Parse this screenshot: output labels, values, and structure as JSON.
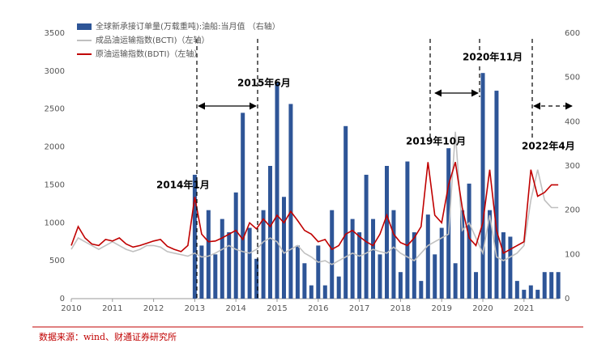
{
  "chart_data": {
    "type": "bar-line",
    "x": [
      2010,
      2010.167,
      2010.333,
      2010.5,
      2010.667,
      2010.833,
      2011,
      2011.167,
      2011.333,
      2011.5,
      2011.667,
      2011.833,
      2012,
      2012.167,
      2012.333,
      2012.5,
      2012.667,
      2012.833,
      2013,
      2013.167,
      2013.333,
      2013.5,
      2013.667,
      2013.833,
      2014,
      2014.167,
      2014.333,
      2014.5,
      2014.667,
      2014.833,
      2015,
      2015.167,
      2015.333,
      2015.5,
      2015.667,
      2015.833,
      2016,
      2016.167,
      2016.333,
      2016.5,
      2016.667,
      2016.833,
      2017,
      2017.167,
      2017.333,
      2017.5,
      2017.667,
      2017.833,
      2018,
      2018.167,
      2018.333,
      2018.5,
      2018.667,
      2018.833,
      2019,
      2019.167,
      2019.333,
      2019.5,
      2019.667,
      2019.833,
      2020,
      2020.167,
      2020.333,
      2020.5,
      2020.667,
      2020.833,
      2021,
      2021.167,
      2021.333,
      2021.5,
      2021.667,
      2021.833
    ],
    "series": [
      {
        "name": "全球新承接订单量(万载重吨):油船:当月值 （右轴）",
        "type": "bar",
        "axis": "y2",
        "color": "#2e5597",
        "values": [
          null,
          null,
          null,
          null,
          null,
          null,
          null,
          null,
          null,
          null,
          null,
          null,
          null,
          null,
          null,
          null,
          null,
          null,
          280,
          120,
          200,
          100,
          180,
          150,
          240,
          420,
          160,
          90,
          200,
          300,
          490,
          230,
          440,
          120,
          80,
          30,
          120,
          30,
          200,
          50,
          390,
          180,
          150,
          280,
          180,
          100,
          300,
          200,
          60,
          310,
          150,
          40,
          190,
          100,
          160,
          340,
          80,
          200,
          260,
          60,
          510,
          200,
          470,
          150,
          140,
          40,
          20,
          30,
          20,
          60,
          60,
          60
        ]
      },
      {
        "name": "成品油运输指数(BCTI)（左轴）",
        "type": "line",
        "color": "#c0c0c0",
        "values": [
          650,
          800,
          750,
          700,
          650,
          700,
          750,
          700,
          650,
          620,
          650,
          700,
          700,
          680,
          620,
          600,
          580,
          560,
          600,
          550,
          560,
          600,
          650,
          700,
          650,
          620,
          600,
          650,
          750,
          800,
          750,
          600,
          650,
          700,
          600,
          550,
          480,
          500,
          450,
          500,
          550,
          600,
          560,
          600,
          650,
          620,
          600,
          680,
          600,
          550,
          500,
          600,
          700,
          750,
          800,
          850,
          2200,
          900,
          1000,
          800,
          600,
          1100,
          550,
          500,
          550,
          600,
          700,
          1300,
          1700,
          1300,
          1200,
          1200
        ]
      },
      {
        "name": "原油运输指数(BDTI)（左轴）",
        "type": "line",
        "color": "#c00000",
        "values": [
          700,
          950,
          800,
          720,
          700,
          780,
          760,
          800,
          720,
          680,
          700,
          730,
          760,
          780,
          690,
          650,
          620,
          700,
          1340,
          850,
          750,
          760,
          800,
          850,
          900,
          780,
          1000,
          920,
          1050,
          950,
          1100,
          1000,
          1150,
          1030,
          900,
          850,
          750,
          780,
          650,
          700,
          850,
          900,
          820,
          750,
          700,
          850,
          1100,
          850,
          740,
          700,
          800,
          950,
          1800,
          1100,
          1000,
          1500,
          1800,
          1200,
          800,
          700,
          1000,
          1700,
          900,
          600,
          650,
          700,
          750,
          1700,
          1350,
          1400,
          1500,
          1500
        ]
      }
    ],
    "xlim": [
      2010,
      2021.85
    ],
    "xticks": [
      2010,
      2011,
      2012,
      2013,
      2014,
      2015,
      2016,
      2017,
      2018,
      2019,
      2020,
      2021
    ],
    "ylim": [
      0,
      3500
    ],
    "yticks": [
      0,
      500,
      1000,
      1500,
      2000,
      2500,
      3000,
      3500
    ],
    "y2lim": [
      0,
      600
    ],
    "y2ticks": [
      0,
      100,
      200,
      300,
      400,
      500,
      600
    ],
    "annotations": [
      "2014年1月",
      "2015年6月",
      "2019年10月",
      "2020年11月",
      "2022年4月"
    ],
    "source": "数据来源：wind、财通证券研究所"
  }
}
